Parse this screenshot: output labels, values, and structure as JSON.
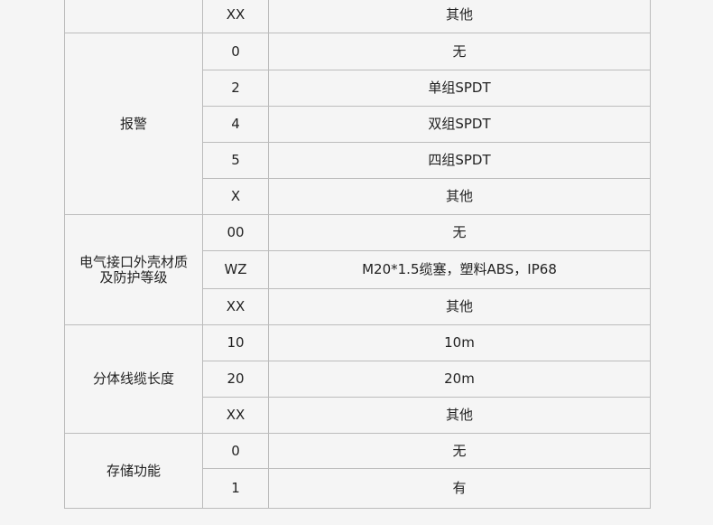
{
  "rows": [
    {
      "group": "",
      "code": "XX",
      "desc": "其他"
    },
    {
      "group": "报警",
      "code": "0",
      "desc": "无"
    },
    {
      "code": "2",
      "desc": "单组SPDT"
    },
    {
      "code": "4",
      "desc": "双组SPDT"
    },
    {
      "code": "5",
      "desc": "四组SPDT"
    },
    {
      "code": "X",
      "desc": "其他"
    },
    {
      "group": "电气接口外壳材质及防护等级",
      "code": "00",
      "desc": "无"
    },
    {
      "code": "WZ",
      "desc": "M20*1.5缆塞，塑料ABS，IP68"
    },
    {
      "code": "XX",
      "desc": "其他"
    },
    {
      "group": "分体线缆长度",
      "code": "10",
      "desc": "10m"
    },
    {
      "code": "20",
      "desc": "20m"
    },
    {
      "code": "XX",
      "desc": "其他"
    },
    {
      "group": "存储功能",
      "code": "0",
      "desc": "无"
    },
    {
      "code": "1",
      "desc": "有"
    }
  ]
}
